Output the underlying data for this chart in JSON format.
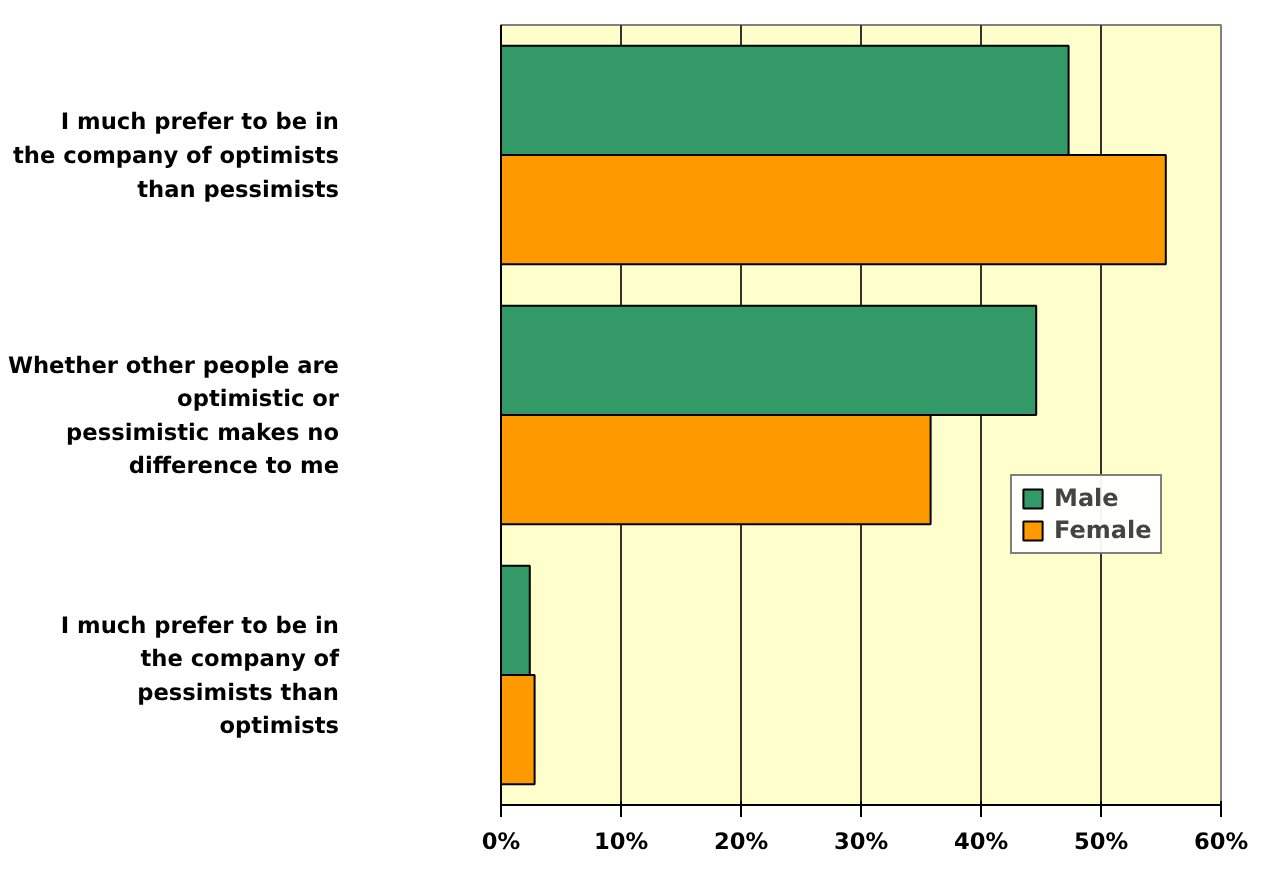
{
  "chart_data": {
    "type": "bar",
    "orientation": "horizontal",
    "categories": [
      "I much prefer to be in the company of optimists than pessimists",
      "Whether other people are optimistic or pessimistic makes no difference to me",
      "I much prefer to be in the company of pessimists than optimists"
    ],
    "series": [
      {
        "name": "Male",
        "color": "#339966",
        "values": [
          47.3,
          44.6,
          2.4
        ]
      },
      {
        "name": "Female",
        "color": "#ff9900",
        "values": [
          55.4,
          35.8,
          2.8
        ]
      }
    ],
    "xlim": [
      0,
      60
    ],
    "xticks": [
      {
        "value": 0,
        "label": "0%"
      },
      {
        "value": 10,
        "label": "10%"
      },
      {
        "value": 20,
        "label": "20%"
      },
      {
        "value": 30,
        "label": "30%"
      },
      {
        "value": 40,
        "label": "40%"
      },
      {
        "value": 50,
        "label": "50%"
      },
      {
        "value": 60,
        "label": "60%"
      }
    ],
    "grid": "x",
    "legend": "right"
  }
}
